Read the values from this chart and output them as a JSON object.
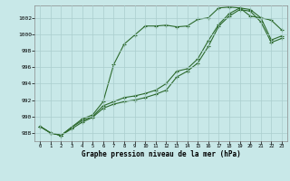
{
  "title": "Graphe pression niveau de la mer (hPa)",
  "background_color": "#c8e8e8",
  "grid_color": "#aacece",
  "line_color": "#2d6a2d",
  "xlim": [
    -0.5,
    23.5
  ],
  "ylim": [
    987.0,
    1003.5
  ],
  "yticks": [
    988,
    990,
    992,
    994,
    996,
    998,
    1000,
    1002
  ],
  "xticks": [
    0,
    1,
    2,
    3,
    4,
    5,
    6,
    7,
    8,
    9,
    10,
    11,
    12,
    13,
    14,
    15,
    16,
    17,
    18,
    19,
    20,
    21,
    22,
    23
  ],
  "series1_x": [
    0,
    1,
    2,
    3,
    4,
    5,
    6,
    7,
    8,
    9,
    10,
    11,
    12,
    13,
    14,
    15,
    16,
    17,
    18,
    19,
    20,
    21,
    22,
    23
  ],
  "series1_y": [
    988.8,
    988.0,
    987.7,
    988.7,
    989.7,
    990.2,
    991.8,
    996.3,
    998.8,
    999.9,
    1001.0,
    1001.0,
    1001.1,
    1000.9,
    1001.0,
    1001.8,
    1002.0,
    1003.2,
    1003.3,
    1003.2,
    1002.2,
    1002.0,
    1001.7,
    1000.5
  ],
  "series2_x": [
    0,
    1,
    2,
    3,
    4,
    5,
    6,
    7,
    8,
    9,
    10,
    11,
    12,
    13,
    14,
    15,
    16,
    17,
    18,
    19,
    20,
    21,
    22,
    23
  ],
  "series2_y": [
    988.8,
    988.0,
    987.7,
    988.7,
    989.5,
    990.0,
    991.3,
    991.8,
    992.3,
    992.5,
    992.8,
    993.2,
    994.0,
    995.5,
    995.8,
    997.0,
    999.2,
    1001.2,
    1002.5,
    1003.2,
    1003.0,
    1002.0,
    999.3,
    999.8
  ],
  "series3_x": [
    0,
    1,
    2,
    3,
    4,
    5,
    6,
    7,
    8,
    9,
    10,
    11,
    12,
    13,
    14,
    15,
    16,
    17,
    18,
    19,
    20,
    21,
    22,
    23
  ],
  "series3_y": [
    988.8,
    988.0,
    987.7,
    988.5,
    989.3,
    989.9,
    991.0,
    991.5,
    991.8,
    992.0,
    992.3,
    992.7,
    993.2,
    994.8,
    995.5,
    996.5,
    998.5,
    1001.0,
    1002.2,
    1003.0,
    1002.8,
    1001.5,
    999.0,
    999.5
  ]
}
